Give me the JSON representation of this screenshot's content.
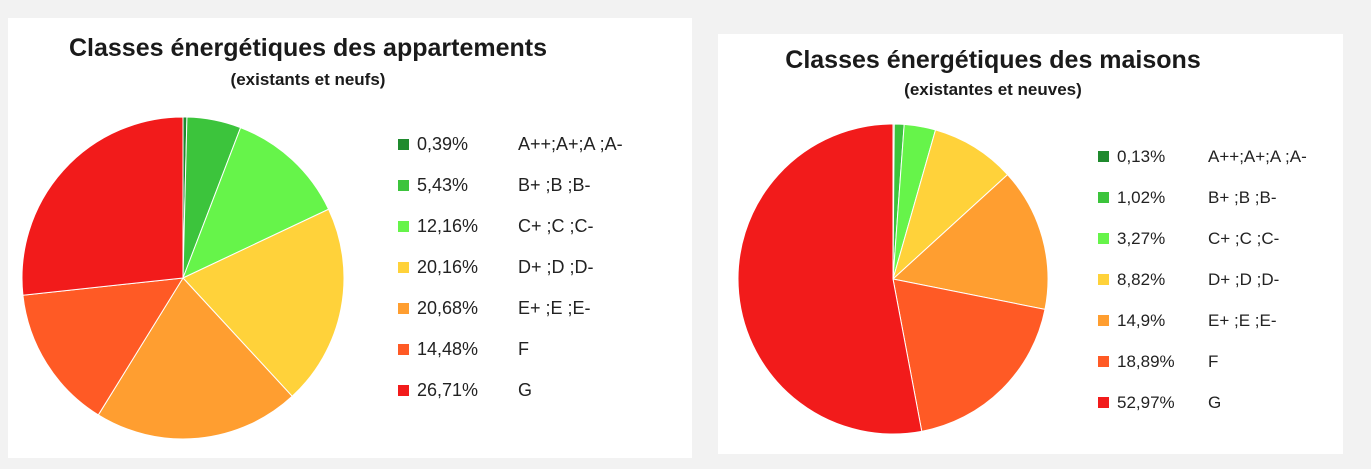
{
  "chart_data": [
    {
      "type": "pie",
      "title": "Classes énergétiques des appartements",
      "subtitle": "(existants et neufs)",
      "categories": [
        "A++;A+;A ;A-",
        "B+ ;B ;B-",
        "C+ ;C ;C-",
        "D+ ;D ;D-",
        "E+ ;E ;E-",
        "F",
        "G"
      ],
      "values": [
        0.39,
        5.43,
        12.16,
        20.16,
        20.68,
        14.48,
        26.71
      ],
      "value_labels": [
        "0,39%",
        "5,43%",
        "12,16%",
        "20,16%",
        "20,68%",
        "14,48%",
        "26,71%"
      ],
      "colors": [
        "#1f8a2e",
        "#3cc43c",
        "#66f44a",
        "#ffd23a",
        "#ff9e30",
        "#ff5a25",
        "#f21b1b"
      ],
      "legend_position": "right"
    },
    {
      "type": "pie",
      "title": "Classes énergétiques des maisons",
      "subtitle": "(existantes et neuves)",
      "categories": [
        "A++;A+;A ;A-",
        "B+ ;B ;B-",
        "C+ ;C ;C-",
        "D+ ;D ;D-",
        "E+ ;E ;E-",
        "F",
        "G"
      ],
      "values": [
        0.13,
        1.02,
        3.27,
        8.82,
        14.9,
        18.89,
        52.97
      ],
      "value_labels": [
        "0,13%",
        "1,02%",
        "3,27%",
        "8,82%",
        "14,9%",
        "18,89%",
        "52,97%"
      ],
      "colors": [
        "#1f8a2e",
        "#3cc43c",
        "#66f44a",
        "#ffd23a",
        "#ff9e30",
        "#ff5a25",
        "#f21b1b"
      ],
      "legend_position": "right"
    }
  ]
}
